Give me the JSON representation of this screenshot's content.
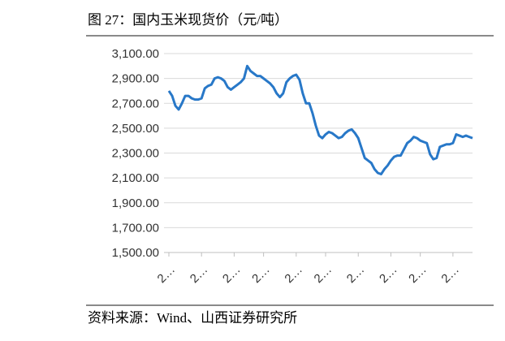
{
  "chart_data": {
    "type": "line",
    "title": "图 27：国内玉米现货价（元/吨）",
    "source": "资料来源：Wind、山西证券研究所",
    "categories": [
      "2…",
      null,
      null,
      null,
      null,
      null,
      null,
      null,
      null,
      null,
      "2…",
      null,
      null,
      null,
      null,
      null,
      null,
      null,
      null,
      null,
      "2…",
      null,
      null,
      null,
      null,
      null,
      null,
      null,
      null,
      "2…",
      null,
      null,
      null,
      null,
      null,
      null,
      null,
      null,
      null,
      "2…",
      null,
      null,
      null,
      null,
      null,
      null,
      null,
      null,
      "2…",
      null,
      null,
      null,
      null,
      null,
      null,
      null,
      null,
      null,
      "2…",
      null,
      null,
      null,
      null,
      null,
      null,
      null,
      null,
      null,
      "2…",
      null,
      null,
      null,
      null,
      null,
      null,
      null,
      null,
      "2…",
      null,
      null,
      null,
      null,
      null,
      null,
      null,
      null,
      null,
      "2…",
      null,
      null,
      null,
      null,
      null,
      null
    ],
    "series": [
      {
        "color": "#2878c8",
        "values": [
          2800,
          2760,
          2680,
          2650,
          2700,
          2760,
          2760,
          2740,
          2730,
          2730,
          2740,
          2820,
          2840,
          2850,
          2900,
          2910,
          2900,
          2880,
          2830,
          2810,
          2830,
          2850,
          2870,
          2900,
          3000,
          2960,
          2940,
          2920,
          2920,
          2900,
          2880,
          2860,
          2830,
          2780,
          2750,
          2780,
          2870,
          2900,
          2920,
          2930,
          2890,
          2780,
          2700,
          2700,
          2620,
          2520,
          2440,
          2420,
          2450,
          2470,
          2460,
          2440,
          2420,
          2430,
          2460,
          2480,
          2490,
          2460,
          2420,
          2340,
          2260,
          2240,
          2220,
          2170,
          2140,
          2130,
          2170,
          2200,
          2240,
          2270,
          2280,
          2280,
          2330,
          2380,
          2400,
          2430,
          2420,
          2400,
          2390,
          2380,
          2290,
          2250,
          2260,
          2350,
          2360,
          2370,
          2370,
          2380,
          2450,
          2440,
          2430,
          2440,
          2430,
          2420
        ]
      }
    ],
    "ylim": [
      1500,
      3100
    ],
    "yticks": [
      {
        "value": 1500,
        "label": "1,500.00"
      },
      {
        "value": 1700,
        "label": "1,700.00"
      },
      {
        "value": 1900,
        "label": "1,900.00"
      },
      {
        "value": 2100,
        "label": "2,100.00"
      },
      {
        "value": 2300,
        "label": "2,300.00"
      },
      {
        "value": 2500,
        "label": "2,500.00"
      },
      {
        "value": 2700,
        "label": "2,700.00"
      },
      {
        "value": 2900,
        "label": "2,900.00"
      },
      {
        "value": 3100,
        "label": "3,100.00"
      }
    ],
    "grid": true
  }
}
